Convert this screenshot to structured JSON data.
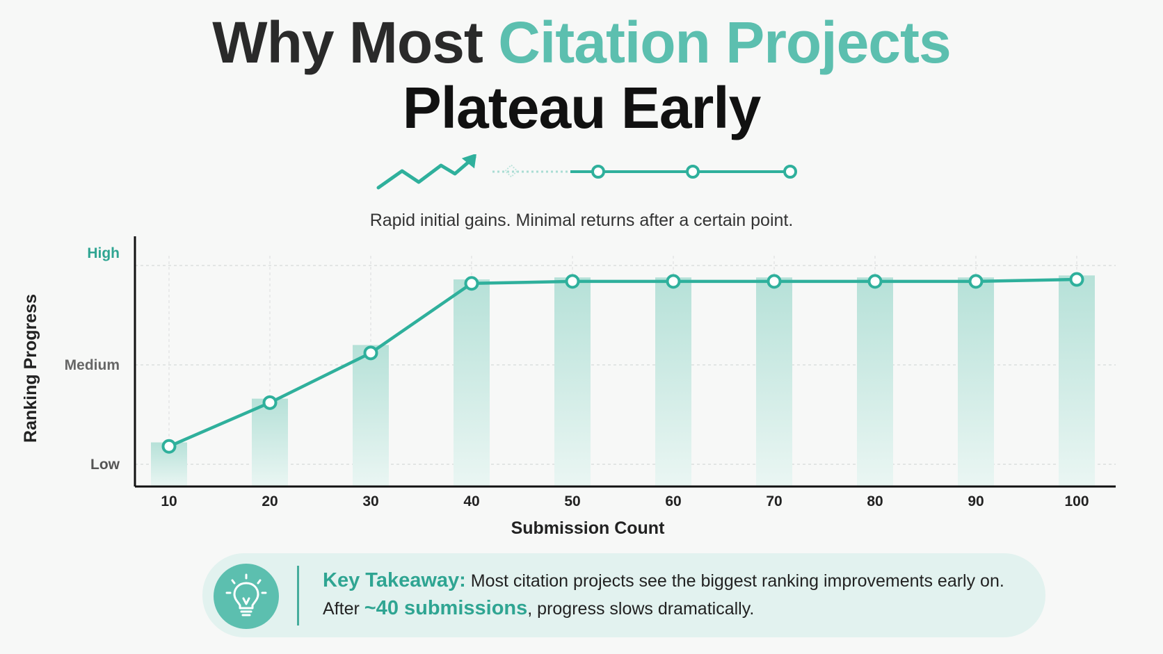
{
  "title": {
    "line1_part1": "Why Most ",
    "line1_part2": "Citation Projects",
    "line2": "Plateau Early"
  },
  "subtitle": "Rapid initial gains. Minimal returns after a certain point.",
  "colors": {
    "accent": "#5cbfaf",
    "line": "#2fb09c",
    "bar": "#bfe5dd",
    "text_dark": "#111111"
  },
  "icons": {
    "header_graphic": "trend-up-then-flat-icon",
    "takeaway": "lightbulb-icon"
  },
  "chart_data": {
    "type": "bar",
    "categories": [
      "10",
      "20",
      "30",
      "40",
      "50",
      "60",
      "70",
      "80",
      "90",
      "100"
    ],
    "values": [
      0.11,
      0.33,
      0.6,
      0.93,
      0.94,
      0.94,
      0.94,
      0.94,
      0.94,
      0.95
    ],
    "line_values": [
      0.09,
      0.31,
      0.56,
      0.91,
      0.92,
      0.92,
      0.92,
      0.92,
      0.92,
      0.93
    ],
    "xlabel": "Submission Count",
    "ylabel": "Ranking Progress",
    "y_tick_labels": [
      "Low",
      "Medium",
      "High"
    ],
    "y_tick_values": [
      0,
      0.5,
      1
    ],
    "ylim": [
      0,
      1
    ],
    "grid": true
  },
  "takeaway": {
    "label": "Key Takeaway:",
    "text_1": " Most citation projects see the biggest ranking improvements early on. After ",
    "highlight": "~40 submissions",
    "text_2": ", progress slows dramatically."
  }
}
